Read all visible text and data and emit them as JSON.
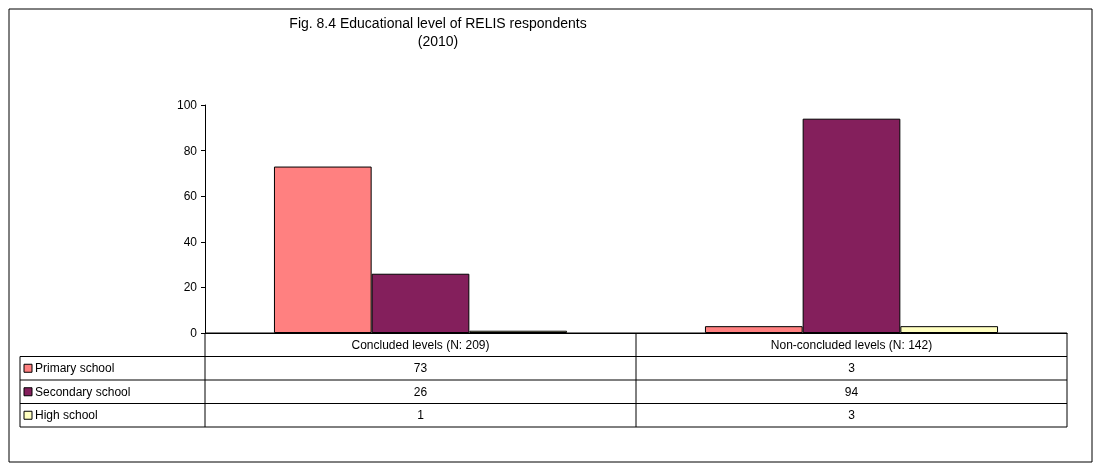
{
  "chart_data": {
    "type": "bar",
    "title": "Fig. 8.4 Educational level of RELIS respondents",
    "subtitle": "(2010)",
    "categories": [
      "Concluded levels (N: 209)",
      "Non-concluded levels (N: 142)"
    ],
    "series": [
      {
        "name": "Primary school",
        "color": "#ff8080",
        "values": [
          73,
          3
        ]
      },
      {
        "name": "Secondary school",
        "color": "#841f5c",
        "values": [
          26,
          94
        ]
      },
      {
        "name": "High school",
        "color": "#ffffc0",
        "values": [
          1,
          3
        ]
      }
    ],
    "ylim": [
      0,
      100
    ],
    "yticks": [
      0,
      20,
      40,
      60,
      80,
      100
    ],
    "grid": false,
    "legend": "bottom left",
    "data_labels": true
  }
}
